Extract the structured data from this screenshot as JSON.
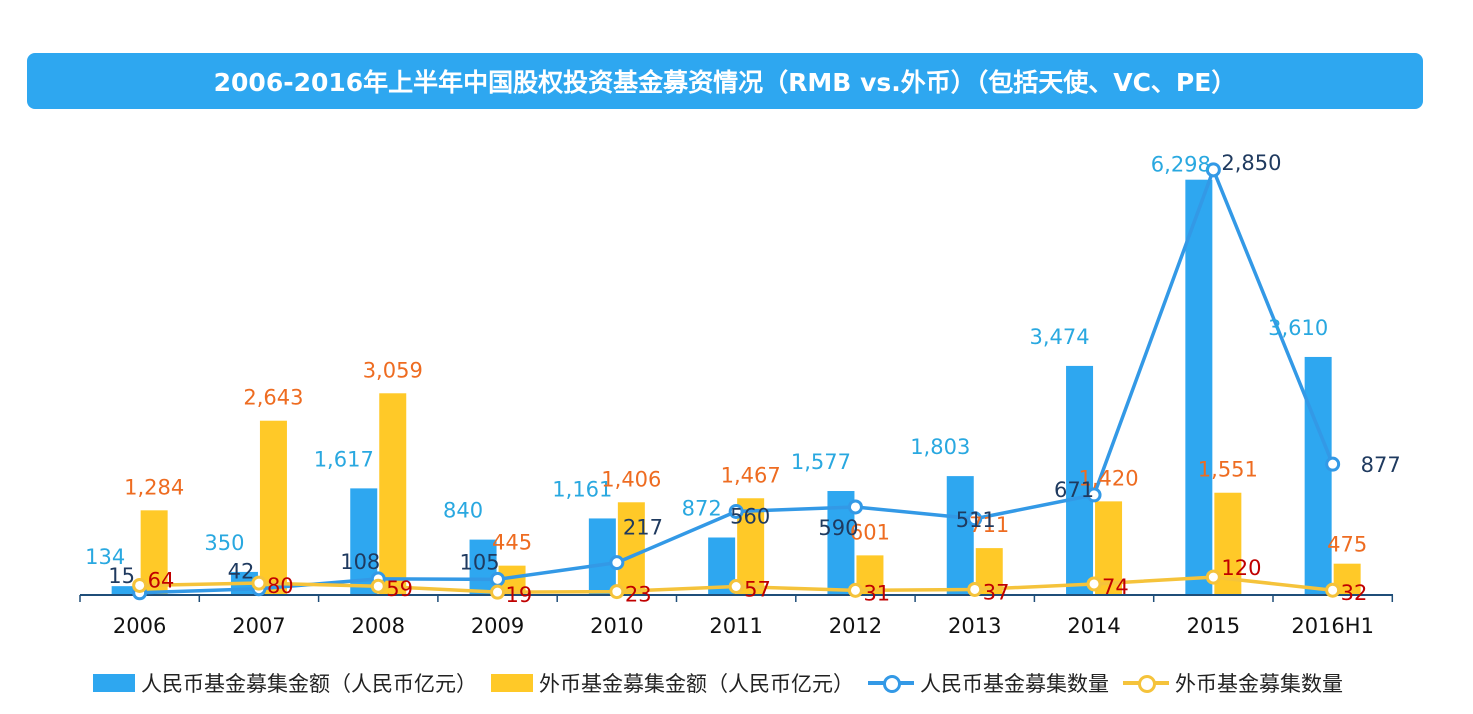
{
  "title": "2006-2016年上半年中国股权投资基金募资情况（RMB vs.外币）（包括天使、VC、PE）",
  "colors": {
    "rmb_bar": "#2ea7f0",
    "fx_bar": "#ffc928",
    "rmb_line": "#3399e6",
    "fx_line": "#f5c33b",
    "rmb_amount_label": "#29a8e0",
    "fx_amount_label": "#ee6c21",
    "rmb_count_label": "#1f3a5f",
    "fx_count_label": "#c00000",
    "axis": "#1f4e79",
    "title_bg": "#2ea7f0"
  },
  "chart_data": {
    "type": "bar",
    "title": "2006-2016年上半年中国股权投资基金募资情况（RMB vs.外币）（包括天使、VC、PE）",
    "categories": [
      "2006",
      "2007",
      "2008",
      "2009",
      "2010",
      "2011",
      "2012",
      "2013",
      "2014",
      "2015",
      "2016H1"
    ],
    "series": [
      {
        "name": "人民币基金募集金额（人民币亿元）",
        "type": "bar",
        "axis": "amount",
        "values": [
          134,
          350,
          1617,
          840,
          1161,
          872,
          1577,
          1803,
          3474,
          6298,
          3610
        ],
        "labels": [
          "134",
          "350",
          "1,617",
          "840",
          "1,161",
          "872",
          "1,577",
          "1,803",
          "3,474",
          "6,298",
          "3,610"
        ]
      },
      {
        "name": "外币基金募集金额（人民币亿元）",
        "type": "bar",
        "axis": "amount",
        "values": [
          1284,
          2643,
          3059,
          445,
          1406,
          1467,
          601,
          711,
          1420,
          1551,
          475
        ],
        "labels": [
          "1,284",
          "2,643",
          "3,059",
          "445",
          "1,406",
          "1,467",
          "601",
          "711",
          "1,420",
          "1,551",
          "475"
        ]
      },
      {
        "name": "人民币基金募集数量",
        "type": "line",
        "axis": "count",
        "values": [
          15,
          42,
          108,
          105,
          217,
          560,
          590,
          511,
          671,
          2850,
          877
        ],
        "labels": [
          "15",
          "42",
          "108",
          "105",
          "217",
          "560",
          "590",
          "511",
          "671",
          "2,850",
          "877"
        ]
      },
      {
        "name": "外币基金募集数量",
        "type": "line",
        "axis": "count",
        "values": [
          64,
          80,
          59,
          19,
          23,
          57,
          31,
          37,
          74,
          120,
          32
        ],
        "labels": [
          "64",
          "80",
          "59",
          "19",
          "23",
          "57",
          "31",
          "37",
          "74",
          "120",
          "32"
        ]
      }
    ],
    "amount_range": [
      0,
      6900
    ],
    "count_range": [
      0,
      3050
    ],
    "grid": false,
    "legend_position": "bottom"
  }
}
